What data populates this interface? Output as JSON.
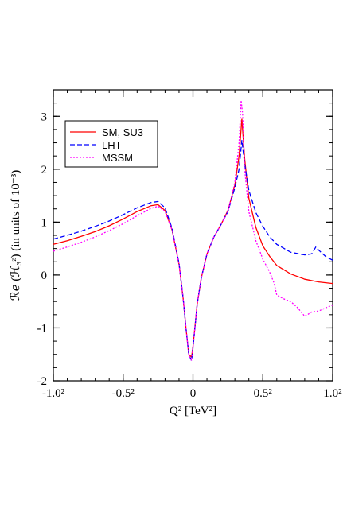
{
  "chart_data": {
    "type": "line",
    "xlabel": "Q² [TeV²]",
    "ylabel": "ℛℯ (ℋ₃ᶻ) (in units of 10⁻³)",
    "xlim": [
      -1.0,
      1.0
    ],
    "ylim": [
      -2,
      3.5
    ],
    "x_ticks": [
      {
        "value": -1.0,
        "label": "-1.0²"
      },
      {
        "value": -0.5,
        "label": "-0.5²"
      },
      {
        "value": 0.0,
        "label": "0"
      },
      {
        "value": 0.5,
        "label": "0.5²"
      },
      {
        "value": 1.0,
        "label": "1.0²"
      }
    ],
    "y_ticks": [
      {
        "value": 3,
        "label": "3"
      },
      {
        "value": 2,
        "label": "2"
      },
      {
        "value": 1,
        "label": "1"
      },
      {
        "value": 0,
        "label": "0"
      },
      {
        "value": -1,
        "label": "-1"
      },
      {
        "value": -2,
        "label": "-2"
      }
    ],
    "grid": false,
    "legend_position": "top-left",
    "series": [
      {
        "name": "SM, SU3",
        "color": "#ff0000",
        "dash": "solid",
        "x": [
          -1.0,
          -0.9,
          -0.8,
          -0.7,
          -0.6,
          -0.5,
          -0.4,
          -0.3,
          -0.25,
          -0.2,
          -0.15,
          -0.1,
          -0.07,
          -0.05,
          -0.03,
          -0.01,
          0.0,
          0.03,
          0.06,
          0.1,
          0.15,
          0.2,
          0.25,
          0.3,
          0.33,
          0.35,
          0.37,
          0.4,
          0.45,
          0.5,
          0.55,
          0.6,
          0.7,
          0.8,
          0.9,
          1.0
        ],
        "y": [
          0.58,
          0.65,
          0.73,
          0.82,
          0.93,
          1.06,
          1.2,
          1.31,
          1.33,
          1.22,
          0.85,
          0.2,
          -0.45,
          -1.0,
          -1.5,
          -1.55,
          -1.35,
          -0.55,
          -0.05,
          0.4,
          0.72,
          0.95,
          1.22,
          1.7,
          2.25,
          2.95,
          2.2,
          1.45,
          0.9,
          0.55,
          0.35,
          0.18,
          0.02,
          -0.08,
          -0.13,
          -0.16
        ]
      },
      {
        "name": "LHT",
        "color": "#0000ff",
        "dash": "6,3",
        "x": [
          -1.0,
          -0.9,
          -0.8,
          -0.7,
          -0.6,
          -0.5,
          -0.4,
          -0.3,
          -0.25,
          -0.2,
          -0.15,
          -0.1,
          -0.07,
          -0.05,
          -0.03,
          -0.01,
          0.0,
          0.03,
          0.06,
          0.1,
          0.15,
          0.2,
          0.25,
          0.3,
          0.33,
          0.35,
          0.37,
          0.4,
          0.45,
          0.5,
          0.55,
          0.6,
          0.7,
          0.8,
          0.85,
          0.88,
          0.9,
          0.95,
          1.0
        ],
        "y": [
          0.68,
          0.75,
          0.83,
          0.92,
          1.02,
          1.14,
          1.27,
          1.37,
          1.39,
          1.27,
          0.88,
          0.22,
          -0.45,
          -1.0,
          -1.5,
          -1.62,
          -1.38,
          -0.55,
          -0.05,
          0.4,
          0.72,
          0.95,
          1.2,
          1.65,
          2.0,
          2.55,
          2.1,
          1.6,
          1.18,
          0.92,
          0.72,
          0.58,
          0.43,
          0.38,
          0.4,
          0.53,
          0.47,
          0.35,
          0.28
        ]
      },
      {
        "name": "MSSM",
        "color": "#ff00ff",
        "dash": "2,2",
        "x": [
          -1.0,
          -0.9,
          -0.8,
          -0.7,
          -0.6,
          -0.5,
          -0.4,
          -0.3,
          -0.25,
          -0.2,
          -0.15,
          -0.1,
          -0.07,
          -0.05,
          -0.03,
          -0.01,
          0.0,
          0.03,
          0.06,
          0.1,
          0.15,
          0.2,
          0.25,
          0.3,
          0.33,
          0.345,
          0.355,
          0.37,
          0.4,
          0.45,
          0.5,
          0.55,
          0.58,
          0.6,
          0.65,
          0.7,
          0.75,
          0.8,
          0.85,
          0.9,
          0.95,
          1.0
        ],
        "y": [
          0.45,
          0.53,
          0.62,
          0.72,
          0.84,
          0.97,
          1.12,
          1.26,
          1.3,
          1.2,
          0.85,
          0.2,
          -0.45,
          -1.0,
          -1.5,
          -1.62,
          -1.38,
          -0.55,
          -0.05,
          0.4,
          0.72,
          0.95,
          1.2,
          1.75,
          2.5,
          3.3,
          3.05,
          2.0,
          1.2,
          0.65,
          0.3,
          0.05,
          -0.15,
          -0.38,
          -0.45,
          -0.5,
          -0.62,
          -0.78,
          -0.7,
          -0.68,
          -0.62,
          -0.57
        ]
      }
    ]
  }
}
